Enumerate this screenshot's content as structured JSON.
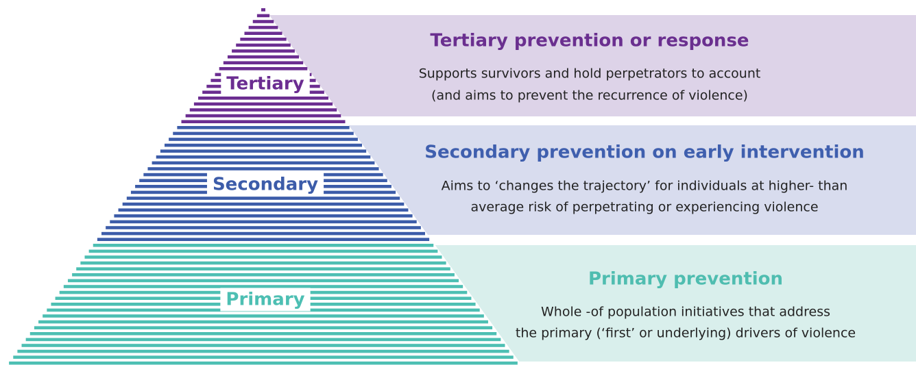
{
  "levels": [
    {
      "label": "Tertiary",
      "title": "Tertiary prevention or response",
      "description": [
        "Supports survivors and hold perpetrators to account",
        "(and aims to prevent the recurrence of violence)"
      ]
    },
    {
      "label": "Secondary",
      "title": "Secondary prevention on early intervention",
      "description": [
        "Aims to ‘changes the trajectory’ for individuals at higher- than",
        "average risk of perpetrating or experiencing violence"
      ]
    },
    {
      "label": "Primary",
      "title": "Primary prevention",
      "description": [
        "Whole -of population initiatives that address",
        "the primary (‘first’ or underlying) drivers of violence"
      ]
    }
  ]
}
